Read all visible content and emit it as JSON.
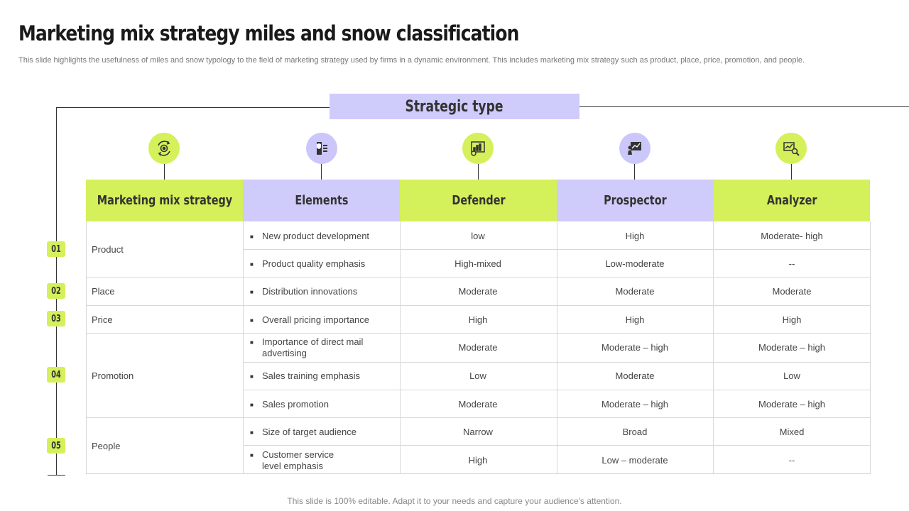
{
  "title": "Marketing mix strategy miles and snow classification",
  "subtitle": "This slide highlights the usefulness of miles and snow typology to the field of marketing strategy used by firms in a dynamic environment. This includes marketing mix strategy such as product, place, price, promotion, and people.",
  "strategic_type_label": "Strategic type",
  "colors": {
    "accent_green": "#d4f05a",
    "accent_purple": "#cfcbfb"
  },
  "columns": [
    {
      "label": "Marketing mix  strategy",
      "icon": "cycle-gear-icon"
    },
    {
      "label": "Elements",
      "icon": "shield-document-icon"
    },
    {
      "label": "Defender",
      "icon": "dashboard-chart-icon"
    },
    {
      "label": "Prospector",
      "icon": "presentation-person-icon"
    },
    {
      "label": "Analyzer",
      "icon": "chart-magnifier-icon"
    }
  ],
  "categories": [
    {
      "number": "01",
      "label": "Product"
    },
    {
      "number": "02",
      "label": "Place"
    },
    {
      "number": "03",
      "label": "Price"
    },
    {
      "number": "04",
      "label": "Promotion"
    },
    {
      "number": "05",
      "label": "People"
    }
  ],
  "rows": [
    {
      "element": "New product development",
      "defender": "low",
      "prospector": "High",
      "analyzer": "Moderate- high"
    },
    {
      "element": "Product quality emphasis",
      "defender": "High-mixed",
      "prospector": "Low-moderate",
      "analyzer": "--"
    },
    {
      "element": "Distribution innovations",
      "defender": "Moderate",
      "prospector": "Moderate",
      "analyzer": "Moderate"
    },
    {
      "element": "Overall  pricing importance",
      "defender": "High",
      "prospector": "High",
      "analyzer": "High"
    },
    {
      "element": "Importance  of direct mail advertising",
      "defender": "Moderate",
      "prospector": "Moderate  – high",
      "analyzer": "Moderate  – high"
    },
    {
      "element": "Sales training emphasis",
      "defender": "Low",
      "prospector": "Moderate",
      "analyzer": "Low"
    },
    {
      "element": "Sales promotion",
      "defender": "Moderate",
      "prospector": "Moderate  – high",
      "analyzer": "Moderate  – high"
    },
    {
      "element": "Size of target audience",
      "defender": "Narrow",
      "prospector": "Broad",
      "analyzer": "Mixed"
    },
    {
      "element": "Customer service level emphasis",
      "defender": "High",
      "prospector": "Low  – moderate",
      "analyzer": "--"
    }
  ],
  "footer": "This slide is 100% editable. Adapt it to your needs and capture your audience's attention."
}
